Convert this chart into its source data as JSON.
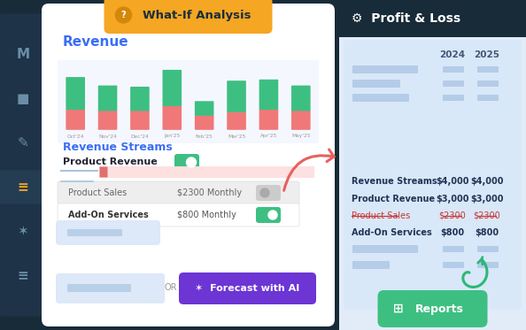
{
  "bg_color": "#182b38",
  "sidebar_color": "#182b38",
  "left_panel_bg": "#ffffff",
  "top_badge_text": "What-If Analysis",
  "top_badge_bg": "#f5a623",
  "top_badge_text_color": "#1a2e3b",
  "revenue_title": "Revenue",
  "revenue_title_color": "#3b6ef5",
  "bar_months": [
    "Oct'24",
    "Nov'24",
    "Dec'24",
    "Jan'25",
    "Feb'25",
    "Mar'25",
    "Apr'25",
    "May'25"
  ],
  "bar_green": [
    0.52,
    0.4,
    0.38,
    0.58,
    0.22,
    0.5,
    0.48,
    0.4
  ],
  "bar_red": [
    0.32,
    0.3,
    0.3,
    0.38,
    0.22,
    0.28,
    0.32,
    0.3
  ],
  "revenue_streams_title": "Revenue Streams",
  "revenue_streams_color": "#3b6ef5",
  "product_revenue_label": "Product Revenue",
  "product_sales_label": "Product Sales",
  "product_sales_value": "$2300 Monthly",
  "addon_label": "Add-On Services",
  "addon_value": "$800 Monthly",
  "forecast_btn_text": "Forecast with AI",
  "forecast_btn_bg": "#6c35d4",
  "pl_title": "Profit & Loss",
  "pl_title_bg": "#182b38",
  "pl_title_color": "#ffffff",
  "pl_col1": "2024",
  "pl_col2": "2025",
  "pl_rows": [
    {
      "label": "Revenue Streams",
      "v1": "$4,000",
      "v2": "$4,000",
      "bold": true,
      "strikethrough": false
    },
    {
      "label": "Product Revenue",
      "v1": "$3,000",
      "v2": "$3,000",
      "bold": true,
      "strikethrough": false
    },
    {
      "label": "Product Sales",
      "v1": "$2300",
      "v2": "$2300",
      "bold": false,
      "strikethrough": true
    },
    {
      "label": "Add-On Services",
      "v1": "$800",
      "v2": "$800",
      "bold": true,
      "strikethrough": false
    }
  ],
  "reports_btn_text": "Reports",
  "reports_btn_bg": "#3dbf82",
  "arrow_color": "#e86060",
  "arrow2_color": "#2db878",
  "green_bar_color": "#3dbf82",
  "red_bar_color": "#f07878",
  "sidebar_icons": [
    "M",
    "■",
    "✎",
    "≡",
    "✶",
    "≡"
  ],
  "sidebar_active": 3
}
